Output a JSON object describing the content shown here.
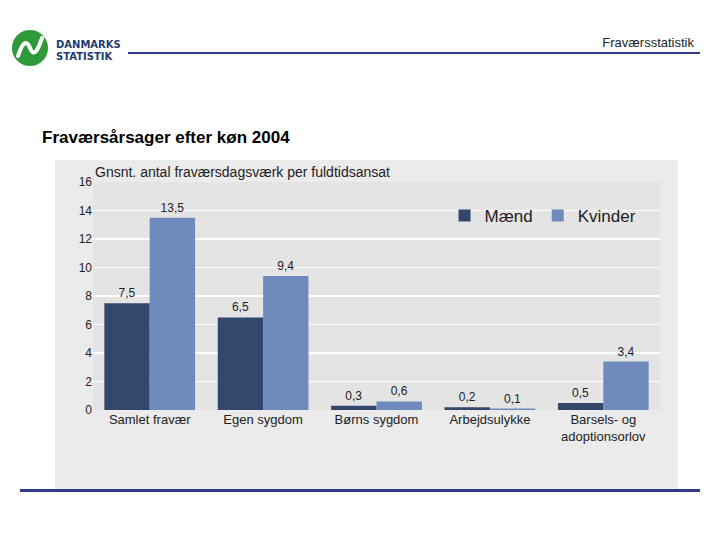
{
  "header": {
    "logo_text": [
      "DANMARKS",
      "STATISTIK"
    ],
    "section": "Fraværsstatistik"
  },
  "slide_title": "Fraværsårsager efter køn 2004",
  "chart_data": {
    "type": "bar",
    "ylabel": "Gnsnt. antal fraværsdagsværk per fuldtidsansat",
    "categories": [
      "Samlet fravær",
      "Egen sygdom",
      "Børns sygdom",
      "Arbejdsulykke",
      "Barsels- og adoptionsorlov"
    ],
    "series": [
      {
        "name": "Mænd",
        "color": "#33476b",
        "values": [
          7.5,
          6.5,
          0.3,
          0.2,
          0.5
        ],
        "value_labels": [
          "7,5",
          "6,5",
          "0,3",
          "0,2",
          "0,5"
        ]
      },
      {
        "name": "Kvinder",
        "color": "#6f8bbd",
        "values": [
          13.5,
          9.4,
          0.6,
          0.1,
          3.4
        ],
        "value_labels": [
          "13,5",
          "9,4",
          "0,6",
          "0,1",
          "3,4"
        ]
      }
    ],
    "ylim": [
      0,
      16
    ],
    "yticks": [
      0,
      2,
      4,
      6,
      8,
      10,
      12,
      14,
      16
    ],
    "grid": true,
    "legend": "upper right",
    "data_labels": true
  }
}
